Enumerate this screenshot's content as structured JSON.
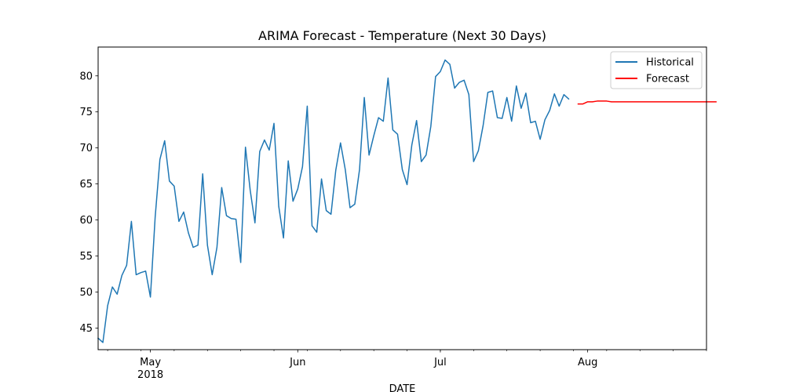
{
  "chart_data": {
    "type": "line",
    "title": "ARIMA Forecast - Temperature (Next 30 Days)",
    "xlabel": "DATE",
    "ylabel": "",
    "ylim": [
      42,
      84
    ],
    "xlim": [
      "2018-04-20",
      "2018-08-26"
    ],
    "y_ticks": [
      45,
      50,
      55,
      60,
      65,
      70,
      75,
      80
    ],
    "x_ticks": [
      {
        "date": "2018-05-01",
        "label": "May",
        "sublabel": "2018"
      },
      {
        "date": "2018-06-01",
        "label": "Jun",
        "sublabel": ""
      },
      {
        "date": "2018-07-01",
        "label": "Jul",
        "sublabel": ""
      },
      {
        "date": "2018-08-01",
        "label": "Aug",
        "sublabel": ""
      }
    ],
    "grid": false,
    "legend": "top-right",
    "series": [
      {
        "name": "Historical",
        "color": "#1f77b4",
        "start_date": "2018-04-20",
        "step_days": 1,
        "values": [
          43.6,
          43.0,
          48.1,
          50.7,
          49.7,
          52.3,
          53.7,
          59.8,
          52.4,
          52.7,
          52.9,
          49.3,
          60.4,
          68.4,
          71.0,
          65.4,
          64.7,
          59.8,
          61.1,
          58.2,
          56.2,
          56.5,
          66.4,
          56.5,
          52.4,
          56.2,
          64.5,
          60.6,
          60.2,
          60.1,
          54.1,
          70.1,
          64.1,
          59.6,
          69.5,
          71.1,
          69.7,
          73.4,
          61.9,
          57.5,
          68.2,
          62.6,
          64.3,
          67.4,
          75.8,
          59.2,
          58.3,
          65.7,
          61.3,
          60.8,
          66.9,
          70.7,
          67.0,
          61.7,
          62.2,
          67.0,
          77.0,
          69.0,
          71.7,
          74.2,
          73.7,
          79.7,
          72.5,
          71.9,
          67.0,
          64.9,
          70.4,
          73.8,
          68.1,
          69.0,
          73.0,
          79.9,
          80.6,
          82.2,
          81.6,
          78.3,
          79.1,
          79.4,
          77.4,
          68.1,
          69.6,
          73.1,
          77.7,
          77.9,
          74.2,
          74.1,
          77.0,
          73.7,
          78.6,
          75.5,
          77.6,
          73.5,
          73.7,
          71.2,
          73.9,
          75.2,
          77.5,
          75.8,
          77.4,
          76.8
        ]
      },
      {
        "name": "Forecast",
        "color": "#ff0000",
        "start_date": "2018-07-30",
        "step_days": 1,
        "values": [
          76.1,
          76.1,
          76.4,
          76.4,
          76.5,
          76.5,
          76.5,
          76.4,
          76.4,
          76.4,
          76.4,
          76.4,
          76.4,
          76.4,
          76.4,
          76.4,
          76.4,
          76.4,
          76.4,
          76.4,
          76.4,
          76.4,
          76.4,
          76.4,
          76.4,
          76.4,
          76.4,
          76.4,
          76.4,
          76.4
        ]
      }
    ]
  }
}
